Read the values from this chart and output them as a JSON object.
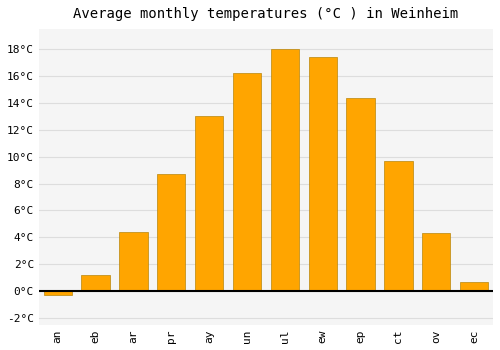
{
  "title": "Average monthly temperatures (°C ) in Weinheim",
  "month_labels": [
    "an",
    "eb",
    "ar",
    "pr",
    "ay",
    "un",
    "ul",
    "ew",
    "ep",
    "ct",
    "ov",
    "ec"
  ],
  "temperatures": [
    -0.3,
    1.2,
    4.4,
    8.7,
    13.0,
    16.2,
    18.0,
    17.4,
    14.4,
    9.7,
    4.3,
    0.7
  ],
  "bar_color": "#FFA500",
  "bar_edge_color": "#B8860B",
  "background_color": "#ffffff",
  "plot_bg_color": "#f5f5f5",
  "grid_color": "#dddddd",
  "ylim": [
    -2.5,
    19.5
  ],
  "yticks": [
    -2,
    0,
    2,
    4,
    6,
    8,
    10,
    12,
    14,
    16,
    18
  ],
  "title_fontsize": 10,
  "tick_fontsize": 8,
  "figsize": [
    5.0,
    3.5
  ],
  "dpi": 100
}
